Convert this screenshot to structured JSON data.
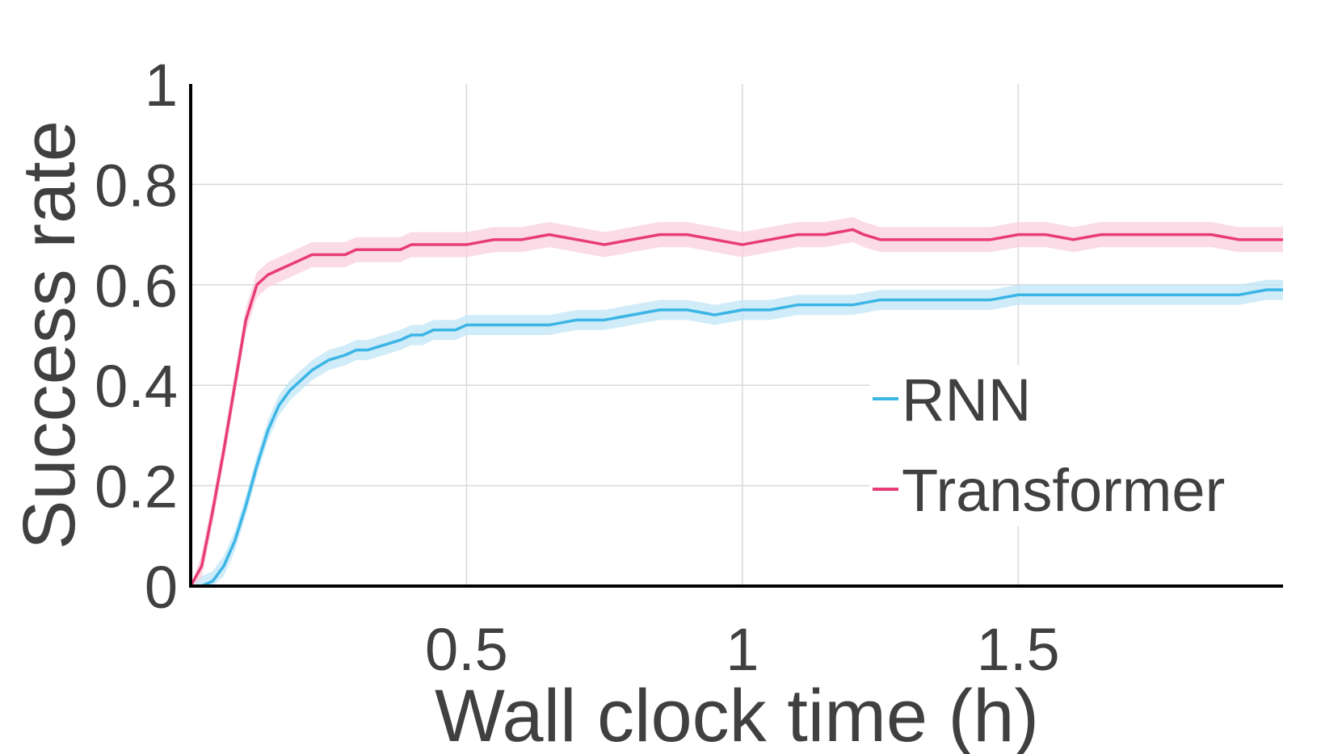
{
  "chart_data": {
    "type": "line",
    "title": "",
    "xlabel": "Wall clock time (h)",
    "ylabel": "Success rate",
    "xlim": [
      0,
      1.98
    ],
    "ylim": [
      0,
      1
    ],
    "x_ticks": [
      {
        "value": 0.5,
        "label": "0.5"
      },
      {
        "value": 1,
        "label": "1"
      },
      {
        "value": 1.5,
        "label": "1.5"
      }
    ],
    "y_ticks": [
      {
        "value": 0,
        "label": "0"
      },
      {
        "value": 0.2,
        "label": "0.2"
      },
      {
        "value": 0.4,
        "label": "0.4"
      },
      {
        "value": 0.6,
        "label": "0.6"
      },
      {
        "value": 0.8,
        "label": "0.8"
      },
      {
        "value": 1,
        "label": "1"
      }
    ],
    "grid": true,
    "legend_position": "bottom-right",
    "series": [
      {
        "name": "RNN",
        "color": "#3bb5e6",
        "band_color": "#bfe6f6",
        "x": [
          0.0,
          0.02,
          0.04,
          0.06,
          0.08,
          0.1,
          0.12,
          0.14,
          0.16,
          0.18,
          0.2,
          0.22,
          0.25,
          0.28,
          0.3,
          0.32,
          0.35,
          0.38,
          0.4,
          0.42,
          0.44,
          0.46,
          0.48,
          0.5,
          0.55,
          0.6,
          0.65,
          0.7,
          0.75,
          0.8,
          0.85,
          0.9,
          0.95,
          1.0,
          1.05,
          1.1,
          1.15,
          1.2,
          1.25,
          1.3,
          1.35,
          1.4,
          1.45,
          1.5,
          1.55,
          1.6,
          1.65,
          1.7,
          1.75,
          1.8,
          1.85,
          1.9,
          1.95,
          1.98
        ],
        "values": [
          0.0,
          0.0,
          0.01,
          0.04,
          0.09,
          0.16,
          0.24,
          0.31,
          0.36,
          0.39,
          0.41,
          0.43,
          0.45,
          0.46,
          0.47,
          0.47,
          0.48,
          0.49,
          0.5,
          0.5,
          0.51,
          0.51,
          0.51,
          0.52,
          0.52,
          0.52,
          0.52,
          0.53,
          0.53,
          0.54,
          0.55,
          0.55,
          0.54,
          0.55,
          0.55,
          0.56,
          0.56,
          0.56,
          0.57,
          0.57,
          0.57,
          0.57,
          0.57,
          0.58,
          0.58,
          0.58,
          0.58,
          0.58,
          0.58,
          0.58,
          0.58,
          0.58,
          0.59,
          0.59
        ],
        "band": 0.02
      },
      {
        "name": "Transformer",
        "color": "#e83c74",
        "band_color": "#f9cfdd",
        "x": [
          0.0,
          0.02,
          0.04,
          0.06,
          0.08,
          0.1,
          0.12,
          0.14,
          0.16,
          0.18,
          0.2,
          0.22,
          0.25,
          0.28,
          0.3,
          0.32,
          0.35,
          0.38,
          0.4,
          0.42,
          0.44,
          0.46,
          0.48,
          0.5,
          0.55,
          0.6,
          0.65,
          0.7,
          0.75,
          0.8,
          0.85,
          0.9,
          0.95,
          1.0,
          1.05,
          1.1,
          1.15,
          1.2,
          1.22,
          1.25,
          1.3,
          1.35,
          1.4,
          1.45,
          1.5,
          1.55,
          1.6,
          1.65,
          1.7,
          1.75,
          1.8,
          1.85,
          1.9,
          1.95,
          1.98
        ],
        "values": [
          0.0,
          0.04,
          0.15,
          0.27,
          0.4,
          0.53,
          0.6,
          0.62,
          0.63,
          0.64,
          0.65,
          0.66,
          0.66,
          0.66,
          0.67,
          0.67,
          0.67,
          0.67,
          0.68,
          0.68,
          0.68,
          0.68,
          0.68,
          0.68,
          0.69,
          0.69,
          0.7,
          0.69,
          0.68,
          0.69,
          0.7,
          0.7,
          0.69,
          0.68,
          0.69,
          0.7,
          0.7,
          0.71,
          0.7,
          0.69,
          0.69,
          0.69,
          0.69,
          0.69,
          0.7,
          0.7,
          0.69,
          0.7,
          0.7,
          0.7,
          0.7,
          0.7,
          0.69,
          0.69,
          0.69
        ],
        "band": 0.025
      }
    ]
  }
}
